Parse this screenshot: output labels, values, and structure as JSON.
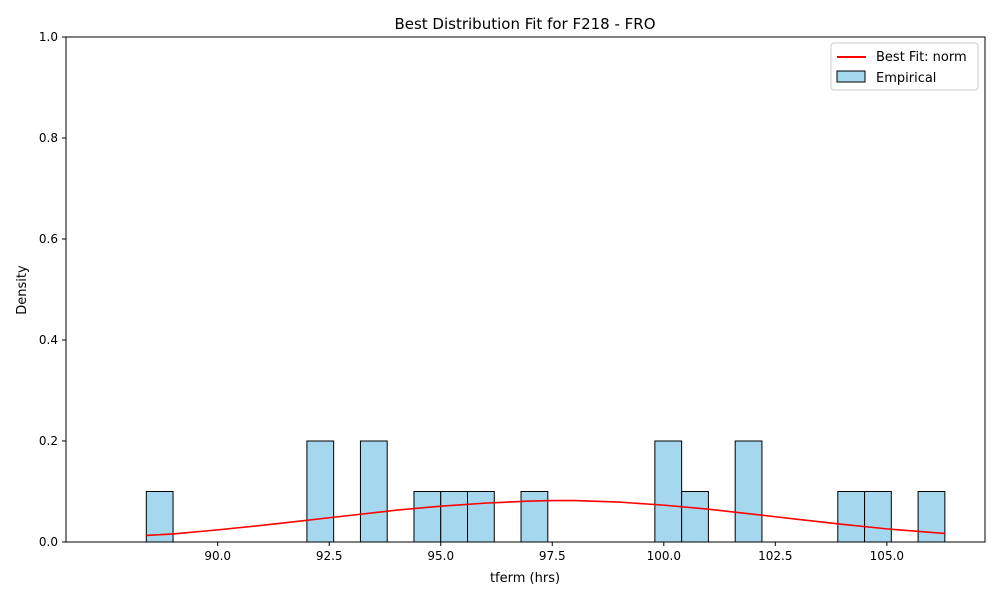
{
  "chart_data": {
    "type": "bar",
    "title": "Best Distribution Fit for F218 - FRO",
    "xlabel": "tferm (hrs)",
    "ylabel": "Density",
    "xlim": [
      86.6,
      107.2
    ],
    "ylim": [
      0,
      1.0
    ],
    "xticks": [
      90.0,
      92.5,
      95.0,
      97.5,
      100.0,
      102.5,
      105.0
    ],
    "xtick_labels": [
      "90.0",
      "92.5",
      "95.0",
      "97.5",
      "100.0",
      "102.5",
      "105.0"
    ],
    "yticks": [
      0.0,
      0.2,
      0.4,
      0.6,
      0.8,
      1.0
    ],
    "ytick_labels": [
      "0.0",
      "0.2",
      "0.4",
      "0.6",
      "0.8",
      "1.0"
    ],
    "grid": false,
    "legend_position": "top-right",
    "histogram": {
      "name": "Empirical",
      "color": "#a5d8ee",
      "edge_color": "#000000",
      "bins": [
        {
          "x0": 88.4,
          "x1": 89.0,
          "value": 0.1
        },
        {
          "x0": 92.0,
          "x1": 92.6,
          "value": 0.2
        },
        {
          "x0": 93.2,
          "x1": 93.8,
          "value": 0.2
        },
        {
          "x0": 94.4,
          "x1": 95.0,
          "value": 0.1
        },
        {
          "x0": 95.0,
          "x1": 95.6,
          "value": 0.1
        },
        {
          "x0": 95.6,
          "x1": 96.2,
          "value": 0.1
        },
        {
          "x0": 96.8,
          "x1": 97.4,
          "value": 0.1
        },
        {
          "x0": 99.8,
          "x1": 100.4,
          "value": 0.2
        },
        {
          "x0": 100.4,
          "x1": 101.0,
          "value": 0.1
        },
        {
          "x0": 101.6,
          "x1": 102.2,
          "value": 0.2
        },
        {
          "x0": 103.9,
          "x1": 104.5,
          "value": 0.1
        },
        {
          "x0": 104.5,
          "x1": 105.1,
          "value": 0.1
        },
        {
          "x0": 105.7,
          "x1": 106.3,
          "value": 0.1
        }
      ]
    },
    "fit_line": {
      "name": "Best Fit: norm",
      "color": "#ff0000",
      "x": [
        88.4,
        89.0,
        90.0,
        91.0,
        92.0,
        92.5,
        93.0,
        94.0,
        95.0,
        96.0,
        97.0,
        97.5,
        98.0,
        99.0,
        100.0,
        101.0,
        102.0,
        102.5,
        103.0,
        104.0,
        105.0,
        106.0,
        106.3
      ],
      "y": [
        0.013,
        0.016,
        0.024,
        0.033,
        0.043,
        0.048,
        0.053,
        0.063,
        0.071,
        0.077,
        0.081,
        0.082,
        0.082,
        0.079,
        0.073,
        0.065,
        0.055,
        0.05,
        0.045,
        0.035,
        0.026,
        0.019,
        0.017
      ]
    }
  }
}
